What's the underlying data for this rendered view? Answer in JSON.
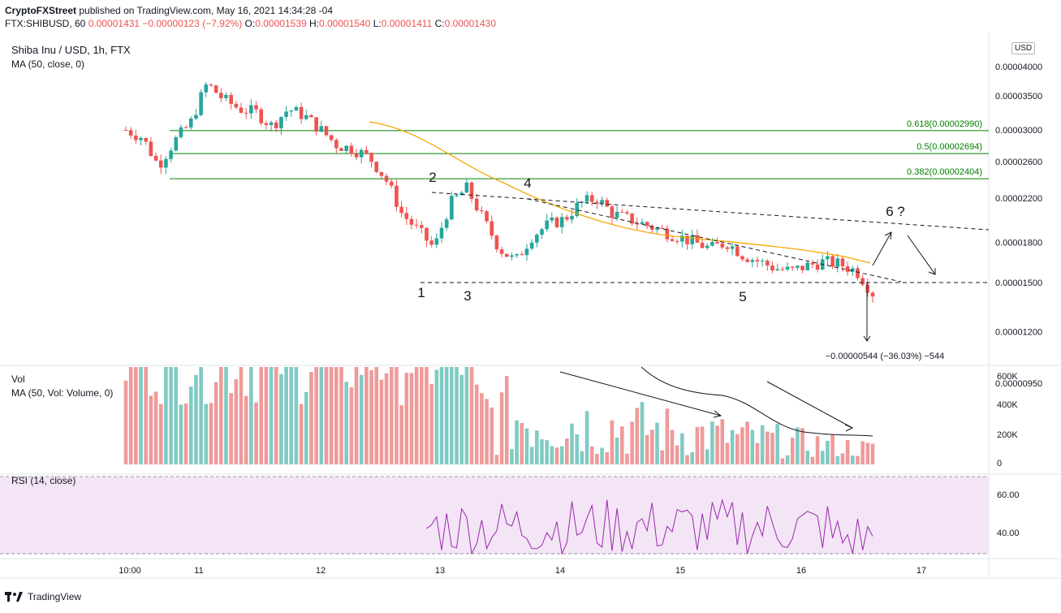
{
  "header": {
    "publisher": "CryptoFXStreet",
    "published_text": "published on TradingView.com, May 16, 2021 14:34:28 -04",
    "symbol": "FTX:SHIBUSD, 60",
    "last": "0.00001431",
    "change": "−0.00000123 (−7.92%)",
    "open": "0.00001539",
    "high": "0.00001540",
    "low": "0.00001411",
    "close": "0.00001430"
  },
  "legend": {
    "main_title": "Shiba Inu / USD, 1h, FTX",
    "ma_label": "MA (50, close, 0)",
    "vol_title": "Vol",
    "vol_ma_label": "MA (50, Vol: Volume, 0)",
    "rsi_label": "RSI (14, close)"
  },
  "price_axis": {
    "currency": "USD",
    "ticks": [
      "0.00004000",
      "0.00003500",
      "0.00003000",
      "0.00002600",
      "0.00002200",
      "0.00001800",
      "0.00001500",
      "0.00001200",
      "0.00000950"
    ]
  },
  "volume_axis": {
    "ticks": [
      "600K",
      "400K",
      "200K",
      "0"
    ]
  },
  "rsi_axis": {
    "ticks": [
      "60.00",
      "40.00"
    ]
  },
  "time_axis": {
    "ticks": [
      "10:00",
      "11",
      "12",
      "13",
      "14",
      "15",
      "16",
      "17"
    ]
  },
  "fib": [
    {
      "label": "0.618(0.00002990)",
      "value": 2.99e-05
    },
    {
      "label": "0.5(0.00002694)",
      "value": 2.694e-05
    },
    {
      "label": "0.382(0.00002404)",
      "value": 2.404e-05
    }
  ],
  "annotations": {
    "points": [
      "1",
      "2",
      "3",
      "4",
      "5",
      "6",
      "?"
    ],
    "measure": "−0.00000544 (−36.03%) −544"
  },
  "colors": {
    "up": "#26a69a",
    "down": "#ef5350",
    "ma": "#f7a600",
    "fib": "#008000",
    "rsi": "#9c27b0",
    "rsi_bg": "#f3e5f5",
    "vol_up": "#80cbc4",
    "vol_down": "#ef9a9a"
  },
  "chart_data": {
    "type": "candlestick",
    "title": "Shiba Inu / USD, 1h, FTX",
    "x": [
      "10:00",
      "11",
      "12",
      "13",
      "14",
      "15",
      "16"
    ],
    "price_close_hourly": [
      3e-05,
      2.9e-05,
      2.55e-05,
      2.85e-05,
      3.1e-05,
      3.7e-05,
      3.45e-05,
      3.3e-05,
      3.25e-05,
      3.05e-05,
      3.3e-05,
      3.2e-05,
      3e-05,
      2.8e-05,
      2.75e-05,
      2.65e-05,
      2.4e-05,
      2.05e-05,
      1.9e-05,
      1.75e-05,
      2.15e-05,
      2.3e-05,
      2e-05,
      1.75e-05,
      1.65e-05,
      1.85e-05,
      1.95e-05,
      2e-05,
      2.15e-05,
      2.2e-05,
      2.05e-05,
      2e-05,
      1.95e-05,
      1.9e-05,
      1.85e-05,
      1.8e-05,
      1.75e-05,
      1.8e-05,
      1.7e-05,
      1.65e-05,
      1.6e-05,
      1.58e-05,
      1.62e-05,
      1.65e-05,
      1.63e-05,
      1.58e-05,
      1.43e-05
    ],
    "volume_hint": "High volume early (off-scale >600K), declining to ~100K near end",
    "rsi_range": [
      28,
      58
    ],
    "ylim": [
      8.5e-06,
      4e-05
    ]
  }
}
